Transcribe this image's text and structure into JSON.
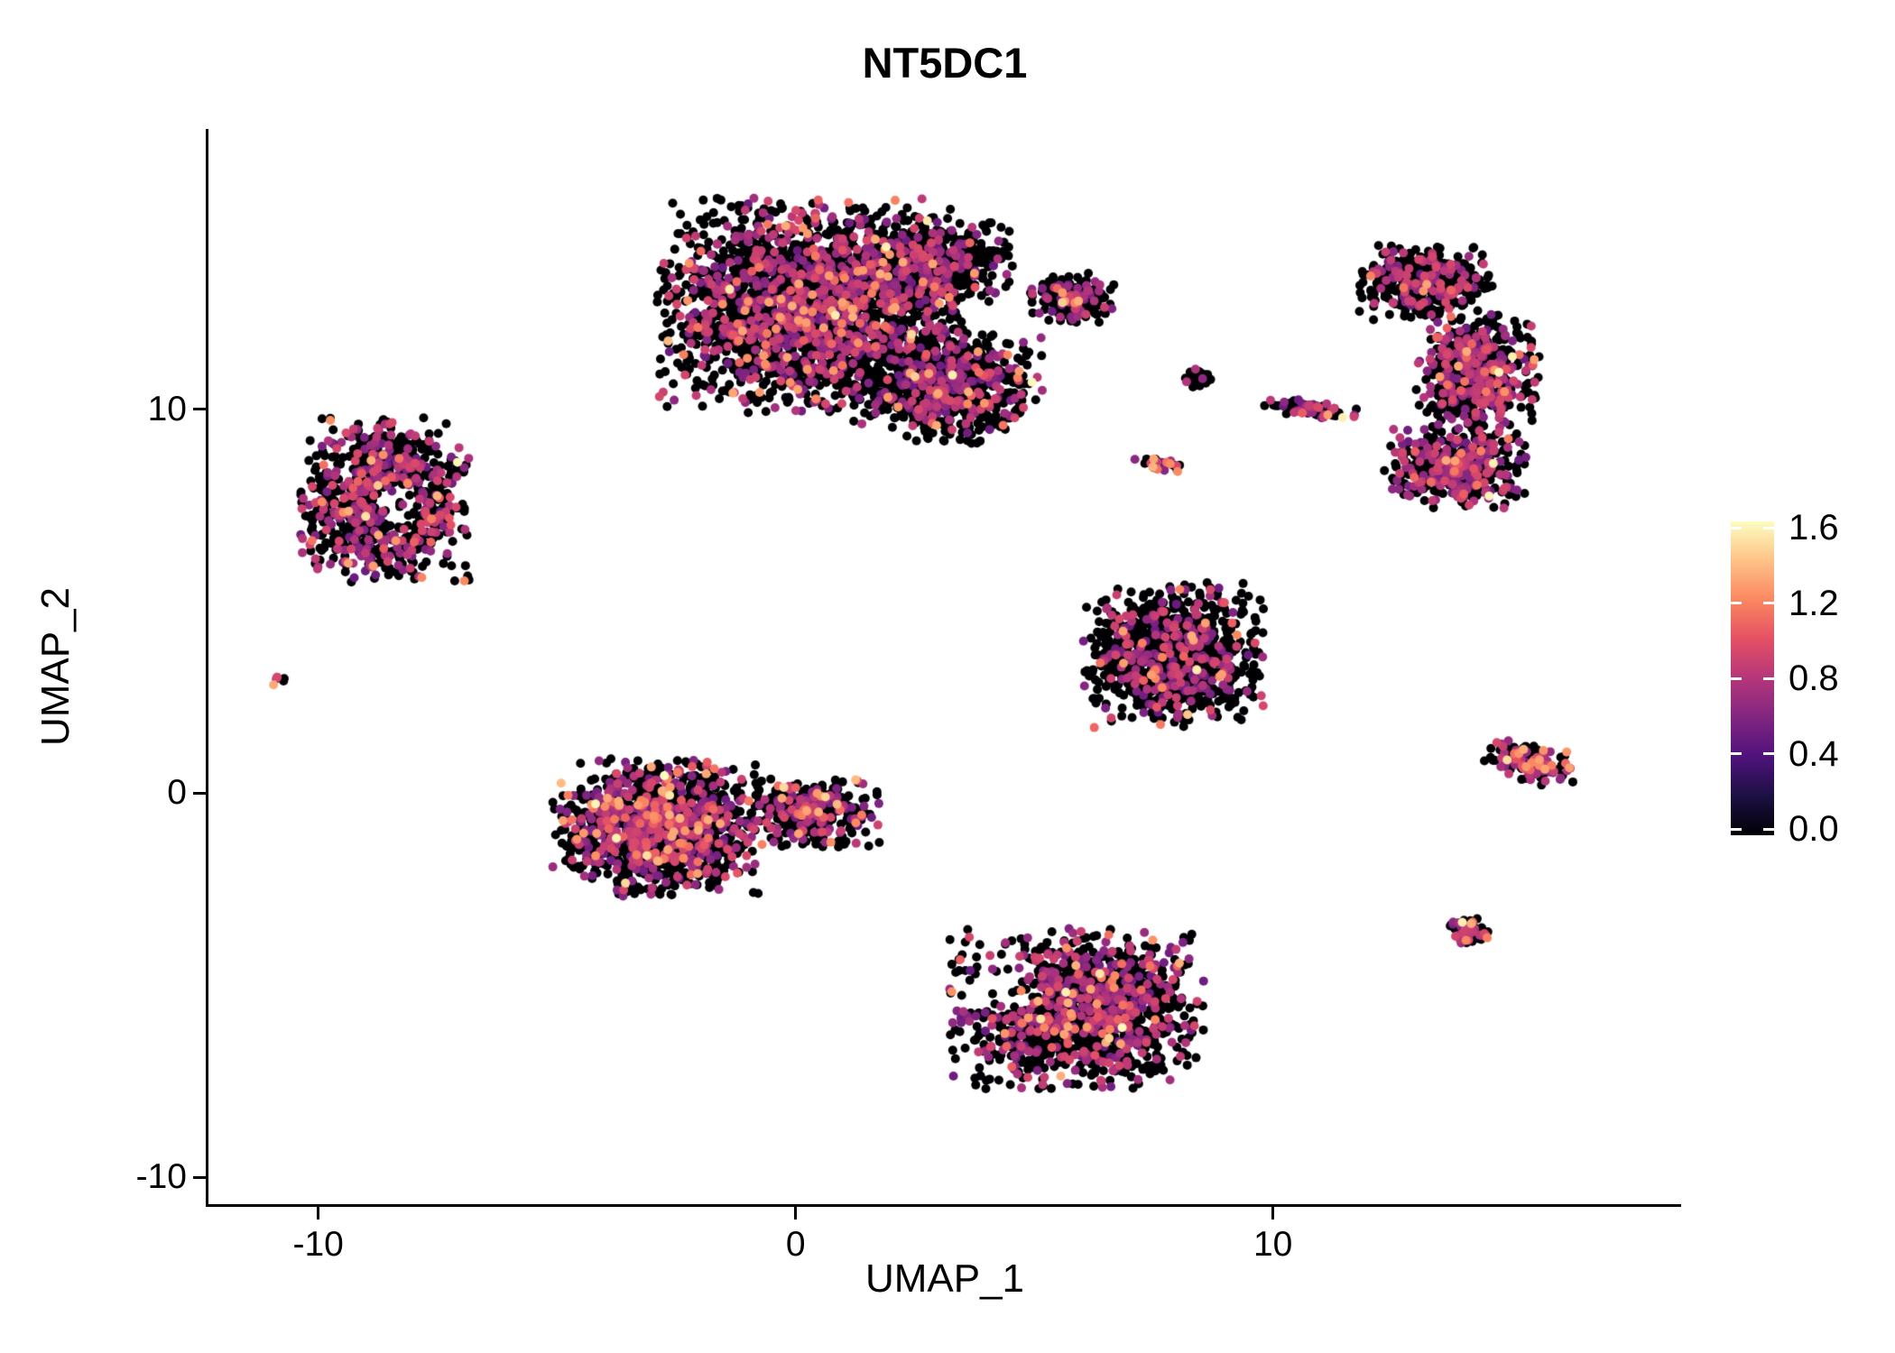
{
  "chart_data": {
    "type": "scatter",
    "title": "NT5DC1",
    "xlabel": "UMAP_1",
    "ylabel": "UMAP_2",
    "grid": false,
    "background": "#ffffff",
    "axis_color": "#000000",
    "text_color": "#000000",
    "x_range": [
      -12.3,
      18.55
    ],
    "y_range": [
      -10.7,
      17.3
    ],
    "x_ticks": [
      -10,
      0,
      10
    ],
    "x_tick_labels": [
      "-10",
      "0",
      "10"
    ],
    "y_ticks": [
      -10,
      0,
      10
    ],
    "y_tick_labels": [
      "-10",
      "0",
      "10"
    ],
    "point_radius_px": 5,
    "colorbar": {
      "min": 0.0,
      "max": 1.6,
      "tick_values": [
        1.6,
        1.2,
        0.8,
        0.4,
        0.0
      ],
      "tick_labels": [
        "1.6",
        "1.2",
        "0.8",
        "0.4",
        "0.0"
      ],
      "palette": "magma",
      "stops": [
        "#000004",
        "#1c1044",
        "#4f127b",
        "#812581",
        "#b5367a",
        "#e55064",
        "#fb8761",
        "#fec287",
        "#fcfdbf"
      ]
    },
    "clusters": [
      {
        "name": "top-main-a",
        "cx": 0.3,
        "cy": 12.7,
        "rx": 3.2,
        "ry": 2.8,
        "n": 2400,
        "p_mid": 0.26,
        "p_high": 0.035
      },
      {
        "name": "top-main-b",
        "cx": 3.2,
        "cy": 10.6,
        "rx": 2.0,
        "ry": 1.5,
        "n": 800,
        "p_mid": 0.24,
        "p_high": 0.035
      },
      {
        "name": "top-main-c",
        "cx": 2.8,
        "cy": 13.8,
        "rx": 1.8,
        "ry": 1.2,
        "n": 500,
        "p_mid": 0.2,
        "p_high": 0.02
      },
      {
        "name": "top-appendage",
        "cx": 5.8,
        "cy": 12.9,
        "rx": 0.9,
        "ry": 0.7,
        "n": 200,
        "p_mid": 0.25,
        "p_high": 0.03
      },
      {
        "name": "left-cluster",
        "cx": -8.6,
        "cy": 7.6,
        "rx": 1.8,
        "ry": 2.2,
        "n": 850,
        "p_mid": 0.32,
        "p_high": 0.04,
        "hole": {
          "x": -8.3,
          "y": 7.5,
          "r": 0.55
        }
      },
      {
        "name": "tiny-left-dots",
        "cx": -10.8,
        "cy": 2.95,
        "rx": 0.18,
        "ry": 0.15,
        "n": 6,
        "p_mid": 0.5,
        "p_high": 0.3
      },
      {
        "name": "midleft-main",
        "cx": -2.9,
        "cy": -0.9,
        "rx": 2.2,
        "ry": 1.8,
        "n": 1400,
        "p_mid": 0.3,
        "p_high": 0.07
      },
      {
        "name": "midleft-tip",
        "cx": 0.4,
        "cy": -0.5,
        "rx": 1.4,
        "ry": 0.9,
        "n": 380,
        "p_mid": 0.22,
        "p_high": 0.04
      },
      {
        "name": "center-right",
        "cx": 7.9,
        "cy": 3.6,
        "rx": 1.9,
        "ry": 1.9,
        "n": 1050,
        "p_mid": 0.22,
        "p_high": 0.025
      },
      {
        "name": "bottom-center",
        "cx": 5.9,
        "cy": -5.6,
        "rx": 2.7,
        "ry": 2.1,
        "n": 1400,
        "p_mid": 0.27,
        "p_high": 0.035,
        "hole": {
          "x": 4.4,
          "y": -5.0,
          "r": 0.75
        }
      },
      {
        "name": "right-crescent-top",
        "cx": 13.2,
        "cy": 13.3,
        "rx": 1.4,
        "ry": 1.0,
        "n": 450,
        "p_mid": 0.22,
        "p_high": 0.02
      },
      {
        "name": "right-crescent-mid",
        "cx": 14.3,
        "cy": 11.0,
        "rx": 1.3,
        "ry": 1.5,
        "n": 650,
        "p_mid": 0.3,
        "p_high": 0.03
      },
      {
        "name": "right-crescent-bot",
        "cx": 13.8,
        "cy": 8.5,
        "rx": 1.5,
        "ry": 1.1,
        "n": 500,
        "p_mid": 0.35,
        "p_high": 0.03
      },
      {
        "name": "small-dots-mid",
        "cx": 8.4,
        "cy": 10.8,
        "rx": 0.3,
        "ry": 0.25,
        "n": 30,
        "p_mid": 0.15,
        "p_high": 0.0
      },
      {
        "name": "small-arc",
        "cx": 10.8,
        "cy": 10.0,
        "rx": 1.0,
        "ry": 0.22,
        "n": 90,
        "p_mid": 0.3,
        "p_high": 0.05,
        "rot": -10
      },
      {
        "name": "small-streak",
        "cx": 7.6,
        "cy": 8.6,
        "rx": 0.55,
        "ry": 0.18,
        "n": 30,
        "p_mid": 0.3,
        "p_high": 0.2,
        "rot": -12
      },
      {
        "name": "right-arrow",
        "cx": 15.4,
        "cy": 0.8,
        "rx": 1.0,
        "ry": 0.5,
        "n": 160,
        "p_mid": 0.3,
        "p_high": 0.12,
        "rot": -18
      },
      {
        "name": "bottom-right-dot",
        "cx": 14.1,
        "cy": -3.6,
        "rx": 0.42,
        "ry": 0.38,
        "n": 90,
        "p_mid": 0.3,
        "p_high": 0.08
      }
    ]
  }
}
